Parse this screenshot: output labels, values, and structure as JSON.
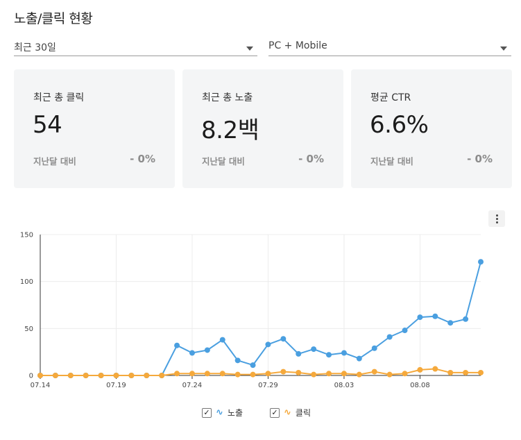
{
  "page": {
    "title": "노출/클릭 현황"
  },
  "filters": {
    "period": {
      "value": "최근 30일"
    },
    "device": {
      "value": "PC + Mobile"
    }
  },
  "cards": {
    "clicks": {
      "label": "최근 총 클릭",
      "value": "54",
      "compare_label": "지난달 대비",
      "compare_value": "- 0%"
    },
    "impressions": {
      "label": "최근 총 노출",
      "value": "8.2백",
      "compare_label": "지난달 대비",
      "compare_value": "- 0%"
    },
    "ctr": {
      "label": "평균 CTR",
      "value": "6.6%",
      "compare_label": "지난달 대비",
      "compare_value": "- 0%"
    }
  },
  "icons": {
    "more": "more-vertical-icon",
    "check": "check-icon"
  },
  "legend": {
    "impressions": {
      "label": "노출",
      "glyph": "∿",
      "color": "#4a9fe0",
      "checked": true,
      "check": "✓"
    },
    "clicks": {
      "label": "클릭",
      "glyph": "∿",
      "color": "#f5a93c",
      "checked": true,
      "check": "✓"
    }
  },
  "chart_data": {
    "type": "line",
    "x": [
      "07.14",
      "07.15",
      "07.16",
      "07.17",
      "07.18",
      "07.19",
      "07.20",
      "07.21",
      "07.22",
      "07.23",
      "07.24",
      "07.25",
      "07.26",
      "07.27",
      "07.28",
      "07.29",
      "07.30",
      "07.31",
      "08.01",
      "08.02",
      "08.03",
      "08.04",
      "08.05",
      "08.06",
      "08.07",
      "08.08",
      "08.09",
      "08.10",
      "08.11",
      "08.12"
    ],
    "x_tick_labels": [
      "07.14",
      "07.19",
      "07.24",
      "07.29",
      "08.03",
      "08.08"
    ],
    "series": [
      {
        "name": "노출",
        "color": "#4a9fe0",
        "values": [
          0,
          0,
          0,
          0,
          0,
          0,
          0,
          0,
          0,
          32,
          24,
          27,
          38,
          16,
          11,
          33,
          39,
          23,
          28,
          22,
          24,
          18,
          29,
          41,
          48,
          62,
          63,
          56,
          60,
          121
        ]
      },
      {
        "name": "클릭",
        "color": "#f5a93c",
        "values": [
          0,
          0,
          0,
          0,
          0,
          0,
          0,
          0,
          0,
          2,
          2,
          2,
          2,
          1,
          1,
          2,
          4,
          3,
          1,
          2,
          2,
          1,
          4,
          1,
          2,
          6,
          7,
          3,
          3,
          3
        ]
      }
    ],
    "ylim": [
      0,
      150
    ],
    "y_ticks": [
      0,
      50,
      100,
      150
    ],
    "grid": true
  }
}
